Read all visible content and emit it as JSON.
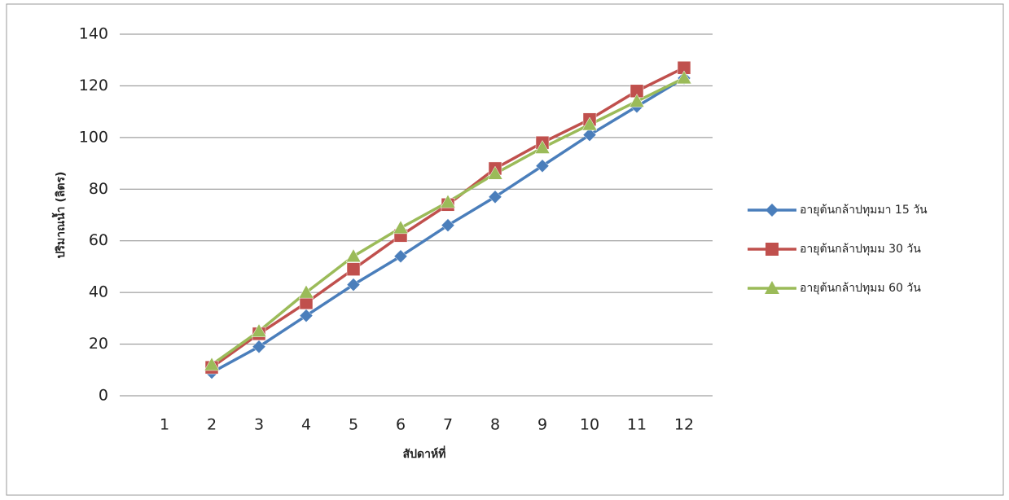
{
  "chart_data": {
    "type": "line",
    "y_label": "ปริมาณน้ำ (ลิตร)",
    "x_label": "สัปดาห์ที่",
    "categories": [
      "1",
      "2",
      "3",
      "4",
      "5",
      "6",
      "7",
      "8",
      "9",
      "10",
      "11",
      "12"
    ],
    "series": [
      {
        "name": "อายุต้นกล้าปทุมมา 15 วัน",
        "color": "#4a7ebb",
        "marker": "diamond",
        "values": [
          null,
          9,
          19,
          31,
          43,
          54,
          66,
          77,
          89,
          101,
          112,
          123
        ]
      },
      {
        "name": "อายุต้นกล้าปทุมม 30 วัน",
        "color": "#c0504d",
        "marker": "square",
        "values": [
          null,
          11,
          24,
          36,
          49,
          62,
          74,
          88,
          98,
          107,
          118,
          127
        ]
      },
      {
        "name": "อายุต้นกล้าปทุมม 60 วัน",
        "color": "#9bbb59",
        "marker": "triangle",
        "values": [
          null,
          12,
          25,
          40,
          54,
          65,
          75,
          86,
          96,
          105,
          114,
          123
        ]
      }
    ],
    "ylim": [
      0,
      140
    ],
    "yticks": [
      0,
      20,
      40,
      60,
      80,
      100,
      120,
      140
    ],
    "grid": true,
    "legend": "right"
  }
}
